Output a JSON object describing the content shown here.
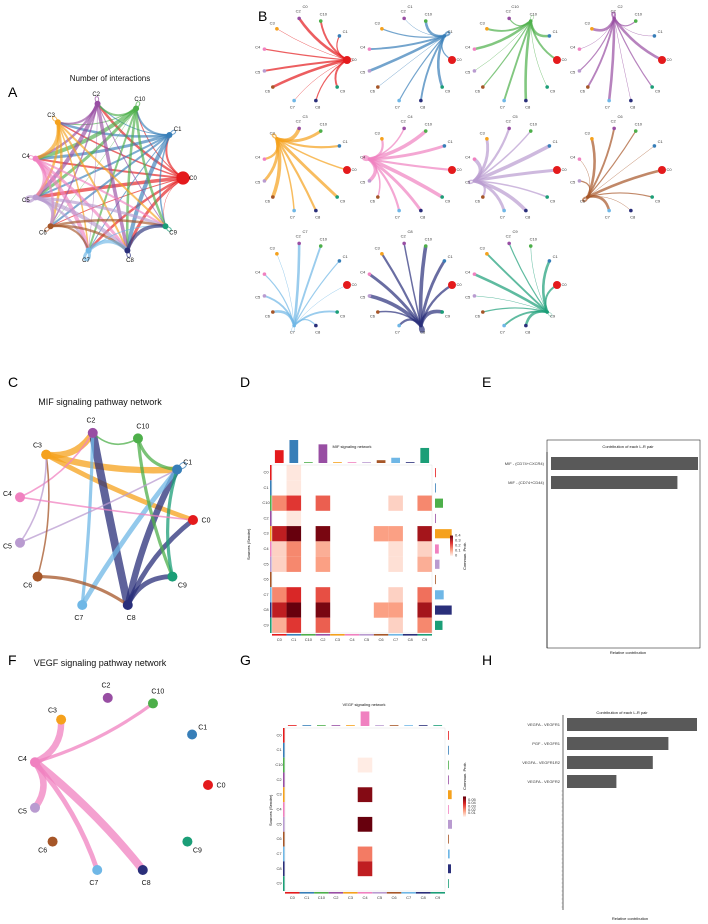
{
  "panels": {
    "A": {
      "label": "A",
      "title": "Number of interactions"
    },
    "B": {
      "label": "B",
      "titles": [
        "C0",
        "C1",
        "C10",
        "C2",
        "C3",
        "C4",
        "C5",
        "C6",
        "C7",
        "C8",
        "C9"
      ]
    },
    "C": {
      "label": "C",
      "title": "MIF signaling pathway network"
    },
    "D": {
      "label": "D",
      "title": "MIF signaling network",
      "ylabel": "Sources (Sender)",
      "legend_title": "Commun. Prob."
    },
    "E": {
      "label": "E",
      "title": "Contribution of each L-R pair",
      "xlabel": "Relative contribution"
    },
    "F": {
      "label": "F",
      "title": "VEGF signaling pathway network"
    },
    "G": {
      "label": "G",
      "title": "VEGF signaling network",
      "ylabel": "Sources (Sender)",
      "legend_title": "Commun. Prob."
    },
    "H": {
      "label": "H",
      "title": "Contribution of each L-R pair",
      "xlabel": "Relative contribution"
    }
  },
  "clusters": [
    "C0",
    "C1",
    "C10",
    "C2",
    "C3",
    "C4",
    "C5",
    "C6",
    "C7",
    "C8",
    "C9"
  ],
  "colors": {
    "C0": "#e41a1c",
    "C1": "#377eb8",
    "C10": "#4daf4a",
    "C2": "#984ea3",
    "C3": "#f5a11c",
    "C4": "#f081c0",
    "C5": "#b99bd0",
    "C6": "#a65628",
    "C7": "#6fb7e6",
    "C8": "#2a2f7a",
    "C9": "#1b9e77"
  },
  "chart_data": [
    {
      "type": "network",
      "panel": "C",
      "edges": [
        [
          "C3",
          "C0",
          3
        ],
        [
          "C3",
          "C1",
          4
        ],
        [
          "C3",
          "C2",
          4
        ],
        [
          "C8",
          "C2",
          5
        ],
        [
          "C8",
          "C1",
          4
        ],
        [
          "C8",
          "C0",
          3
        ],
        [
          "C8",
          "C9",
          3
        ],
        [
          "C7",
          "C1",
          3
        ],
        [
          "C7",
          "C2",
          2
        ],
        [
          "C10",
          "C1",
          2
        ],
        [
          "C10",
          "C9",
          2
        ],
        [
          "C9",
          "C1",
          2
        ],
        [
          "C5",
          "C1",
          1
        ],
        [
          "C4",
          "C2",
          1
        ],
        [
          "C6",
          "C3",
          1
        ],
        [
          "C6",
          "C8",
          2
        ],
        [
          "C10",
          "C2",
          1
        ],
        [
          "C5",
          "C3",
          1
        ],
        [
          "C4",
          "C0",
          1
        ],
        [
          "C1",
          "C1",
          1
        ]
      ]
    },
    {
      "type": "heatmap",
      "panel": "D",
      "title": "MIF signaling network",
      "rows": [
        "C0",
        "C1",
        "C10",
        "C2",
        "C3",
        "C4",
        "C5",
        "C6",
        "C7",
        "C8",
        "C9"
      ],
      "cols": [
        "C0",
        "C1",
        "C10",
        "C2",
        "C3",
        "C4",
        "C5",
        "C6",
        "C7",
        "C8",
        "C9"
      ],
      "range": [
        0,
        0.4
      ],
      "colorbar_ticks": [
        0,
        0.1,
        0.2,
        0.3,
        0.4
      ],
      "values": [
        [
          0,
          0.02,
          0,
          0,
          0,
          0,
          0,
          0,
          0,
          0,
          0
        ],
        [
          0,
          0.02,
          0,
          0,
          0,
          0,
          0,
          0,
          0,
          0,
          0
        ],
        [
          0.15,
          0.25,
          0,
          0.2,
          0,
          0,
          0,
          0,
          0.05,
          0,
          0.15
        ],
        [
          0,
          0.02,
          0,
          0,
          0,
          0,
          0,
          0,
          0,
          0,
          0
        ],
        [
          0.3,
          0.42,
          0,
          0.38,
          0,
          0,
          0,
          0.12,
          0.12,
          0,
          0.33
        ],
        [
          0.05,
          0.15,
          0,
          0.1,
          0,
          0,
          0,
          0,
          0.03,
          0,
          0.05
        ],
        [
          0.05,
          0.15,
          0,
          0.12,
          0,
          0,
          0,
          0,
          0.03,
          0,
          0.1
        ],
        [
          0,
          0,
          0,
          0,
          0,
          0,
          0,
          0,
          0,
          0,
          0
        ],
        [
          0.15,
          0.27,
          0,
          0.22,
          0,
          0,
          0,
          0,
          0.05,
          0,
          0.18
        ],
        [
          0.3,
          0.42,
          0,
          0.38,
          0,
          0,
          0,
          0.12,
          0.12,
          0,
          0.33
        ],
        [
          0.1,
          0.25,
          0,
          0.2,
          0,
          0,
          0,
          0,
          0.05,
          0,
          0.15
        ]
      ]
    },
    {
      "type": "bar",
      "panel": "E",
      "orientation": "horizontal",
      "categories": [
        "MIF - (CD74+CXCR4)",
        "MIF - (CD74+CD44)"
      ],
      "values": [
        1.0,
        0.86
      ],
      "xlabel": "Relative contribution",
      "title": "Contribution of each L-R pair"
    },
    {
      "type": "network",
      "panel": "F",
      "edges": [
        [
          "C4",
          "C3",
          4
        ],
        [
          "C4",
          "C10",
          2
        ],
        [
          "C4",
          "C5",
          4
        ],
        [
          "C4",
          "C7",
          3
        ],
        [
          "C4",
          "C8",
          5
        ]
      ]
    },
    {
      "type": "heatmap",
      "panel": "G",
      "title": "VEGF signaling network",
      "rows": [
        "C0",
        "C1",
        "C10",
        "C2",
        "C3",
        "C4",
        "C5",
        "C6",
        "C7",
        "C8",
        "C9"
      ],
      "cols": [
        "C0",
        "C1",
        "C10",
        "C2",
        "C3",
        "C4",
        "C5",
        "C6",
        "C7",
        "C8",
        "C9"
      ],
      "range": [
        0,
        0.06
      ],
      "colorbar_ticks": [
        0.01,
        0.02,
        0.03,
        0.04,
        0.05
      ],
      "values": [
        [
          0,
          0,
          0,
          0,
          0,
          0,
          0,
          0,
          0,
          0,
          0
        ],
        [
          0,
          0,
          0,
          0,
          0,
          0,
          0,
          0,
          0,
          0,
          0
        ],
        [
          0,
          0,
          0,
          0,
          0,
          0.002,
          0,
          0,
          0,
          0,
          0
        ],
        [
          0,
          0,
          0,
          0,
          0,
          0,
          0,
          0,
          0,
          0,
          0
        ],
        [
          0,
          0,
          0,
          0,
          0,
          0.055,
          0,
          0,
          0,
          0,
          0
        ],
        [
          0,
          0,
          0,
          0,
          0,
          0,
          0,
          0,
          0,
          0,
          0
        ],
        [
          0,
          0,
          0,
          0,
          0,
          0.06,
          0,
          0,
          0,
          0,
          0
        ],
        [
          0,
          0,
          0,
          0,
          0,
          0,
          0,
          0,
          0,
          0,
          0
        ],
        [
          0,
          0,
          0,
          0,
          0,
          0.025,
          0,
          0,
          0,
          0,
          0
        ],
        [
          0,
          0,
          0,
          0,
          0,
          0.045,
          0,
          0,
          0,
          0,
          0
        ],
        [
          0,
          0,
          0,
          0,
          0,
          0,
          0,
          0,
          0,
          0,
          0
        ]
      ]
    },
    {
      "type": "bar",
      "panel": "H",
      "orientation": "horizontal",
      "categories": [
        "VEGFA - VEGFR1",
        "PGF - VEGFR1",
        "VEGFA - VEGFR1R2",
        "VEGFA - VEGFR2"
      ],
      "values": [
        1.0,
        0.78,
        0.66,
        0.38
      ],
      "xlabel": "Relative contribution",
      "title": "Contribution of each L-R pair"
    }
  ]
}
